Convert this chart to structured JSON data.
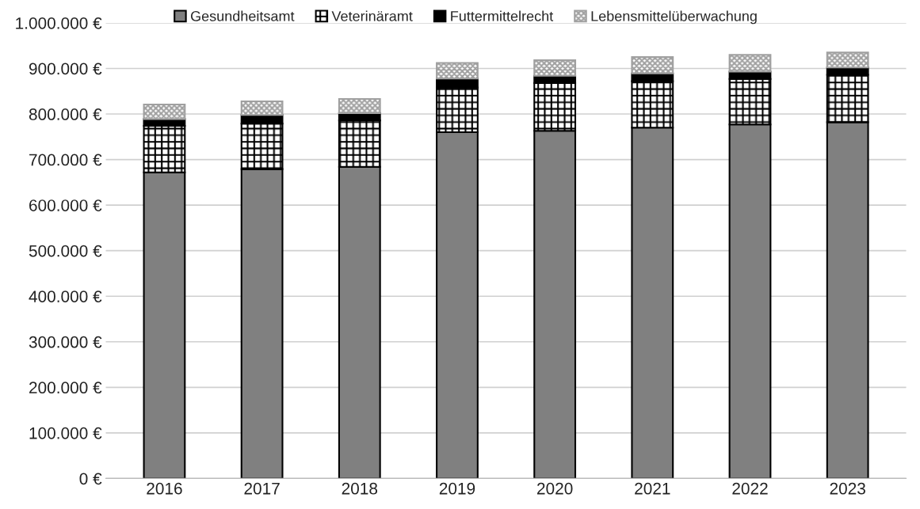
{
  "chart_data": {
    "type": "bar",
    "stacked": true,
    "categories": [
      "2016",
      "2017",
      "2018",
      "2019",
      "2020",
      "2021",
      "2022",
      "2023"
    ],
    "series": [
      {
        "name": "Gesundheitsamt",
        "color": "#808080",
        "values": [
          672000,
          679000,
          684000,
          760000,
          763000,
          770000,
          777000,
          782000
        ]
      },
      {
        "name": "Veterinäramt",
        "color": "#000000",
        "values": [
          102000,
          100000,
          102000,
          98000,
          105000,
          102000,
          100000,
          104000
        ]
      },
      {
        "name": "Futtermittelrecht",
        "color": "#000000",
        "values": [
          15000,
          19000,
          16000,
          20000,
          16000,
          17000,
          16000,
          16000
        ]
      },
      {
        "name": "Lebensmittelüberwachung",
        "color": "#a0a0a0",
        "values": [
          32000,
          30000,
          31000,
          34000,
          34000,
          36000,
          37000,
          33000
        ]
      }
    ],
    "ylim": [
      0,
      1000000
    ],
    "yticks": [
      {
        "value": 0,
        "label": "0 €"
      },
      {
        "value": 100000,
        "label": "100.000 €"
      },
      {
        "value": 200000,
        "label": "200.000 €"
      },
      {
        "value": 300000,
        "label": "300.000 €"
      },
      {
        "value": 400000,
        "label": "400.000 €"
      },
      {
        "value": 500000,
        "label": "500.000 €"
      },
      {
        "value": 600000,
        "label": "600.000 €"
      },
      {
        "value": 700000,
        "label": "700.000 €"
      },
      {
        "value": 800000,
        "label": "800.000 €"
      },
      {
        "value": 900000,
        "label": "900.000 €"
      },
      {
        "value": 1000000,
        "label": "1.000.000 €"
      }
    ],
    "grid": "y",
    "legend": "top"
  }
}
